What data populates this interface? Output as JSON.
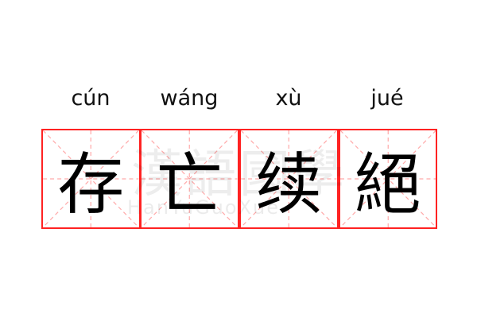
{
  "pinyin": [
    "cún",
    "wáng",
    "xù",
    "jué"
  ],
  "characters": [
    "存",
    "亡",
    "续",
    "絕"
  ],
  "watermark": {
    "chinese": "漢語國學",
    "latin": "HanYuGuoXue"
  },
  "colors": {
    "border": "#ff2222",
    "guide": "#ffaaaa",
    "text": "#000000"
  }
}
